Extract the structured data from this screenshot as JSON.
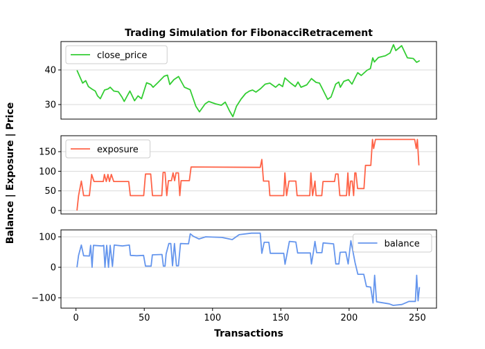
{
  "chart_data": [
    {
      "type": "line",
      "title": "Trading Simulation for FibonacciRetracement",
      "xlabel": "",
      "ylabel": "",
      "xlim": [
        -11,
        264
      ],
      "ylim": [
        25.8,
        48.2
      ],
      "yticks": [
        30,
        40
      ],
      "xticks": [],
      "grid": "horizontal",
      "legend": "upper-left",
      "series": [
        {
          "name": "close_price",
          "color": "#32cd32",
          "x": [
            0.7,
            4.9,
            7.1,
            9.1,
            11.6,
            14.1,
            15.8,
            17.8,
            20.9,
            23.4,
            25.1,
            27.7,
            31,
            33.6,
            35.3,
            37.5,
            39.5,
            42.9,
            45.4,
            48,
            51.7,
            54.8,
            56.5,
            59.9,
            64.6,
            67,
            68.7,
            71.7,
            75.1,
            79.4,
            83.6,
            87.8,
            90.4,
            94.6,
            97.2,
            102.2,
            106.4,
            109.3,
            112.4,
            114.9,
            117.5,
            120.9,
            124.2,
            127,
            129.3,
            131.8,
            135.2,
            138.6,
            142,
            146.2,
            148.7,
            151.3,
            153,
            157.2,
            160.6,
            162.6,
            164.8,
            169,
            172.4,
            175.8,
            178.3,
            180.9,
            184.3,
            186.8,
            190.2,
            192.4,
            193.6,
            196.1,
            199.5,
            202.1,
            204.6,
            206.3,
            208.9,
            213.1,
            215.6,
            217.3,
            218.5,
            221.5,
            226.6,
            230,
            232.5,
            234.2,
            238.5,
            242.7,
            247,
            249.5,
            251.7
          ],
          "y": [
            39.9,
            36.2,
            36.9,
            35.2,
            34.5,
            33.9,
            32.5,
            31.7,
            34.2,
            34.5,
            35,
            33.9,
            33.7,
            32.2,
            30.9,
            32.5,
            33.9,
            31.1,
            32.5,
            31.7,
            36.3,
            35.8,
            35,
            36.3,
            38.2,
            38.5,
            35.8,
            37.2,
            38.1,
            35,
            34.3,
            29.5,
            27.9,
            30.2,
            30.9,
            30.2,
            29.8,
            30.7,
            28.2,
            26.5,
            29.5,
            31.6,
            33.2,
            33.9,
            34.2,
            33.6,
            34.6,
            35.9,
            36.2,
            35,
            35.9,
            35.2,
            37.7,
            36.2,
            35.2,
            36.5,
            35,
            35.7,
            37.5,
            36.4,
            36.2,
            34.2,
            31.5,
            32.2,
            35.9,
            36.5,
            35,
            36.7,
            37.2,
            35.9,
            37.9,
            39.2,
            38.4,
            39.9,
            40.4,
            43.5,
            42.3,
            43.6,
            44.1,
            44.9,
            47.3,
            45.6,
            47,
            43.5,
            43.3,
            42.2,
            42.7
          ]
        }
      ]
    },
    {
      "type": "line",
      "xlim": [
        -11,
        264
      ],
      "ylim": [
        -8.8,
        190.6
      ],
      "yticks": [
        0,
        50,
        100,
        150
      ],
      "xticks": [],
      "grid": "horizontal",
      "legend": "upper-left",
      "series": [
        {
          "name": "exposure",
          "color": "#ff6347",
          "x": [
            0.7,
            1.9,
            3.9,
            5.6,
            9.8,
            11.5,
            13.2,
            20,
            20.8,
            22.2,
            23.4,
            24.5,
            25.9,
            27.6,
            38.6,
            39.8,
            49.6,
            50.9,
            54.7,
            56,
            62.8,
            63.8,
            65.2,
            66.5,
            67.7,
            69.9,
            71.1,
            72.2,
            73.3,
            75,
            76,
            77,
            83,
            84.3,
            134.9,
            136.1,
            137.3,
            141.2,
            142,
            152.1,
            153,
            154.2,
            156,
            161,
            161.9,
            171.2,
            172,
            173.3,
            175,
            175.8,
            180,
            180.9,
            189.3,
            190.2,
            191.9,
            193.2,
            198.1,
            199.1,
            200,
            201.1,
            202.3,
            203.3,
            204.2,
            205,
            206.2,
            210.9,
            212,
            215.9,
            217.1,
            218,
            219.3,
            248,
            249.2,
            250,
            251.1
          ],
          "y": [
            0,
            38,
            75,
            38,
            38,
            92,
            74,
            74,
            92,
            74,
            92,
            74,
            92,
            74,
            74,
            38,
            38,
            93,
            93,
            38,
            38,
            97,
            97,
            38,
            76,
            76,
            96,
            76,
            96,
            96,
            38,
            76,
            76,
            111,
            110,
            130,
            75,
            75,
            38,
            38,
            96,
            38,
            75,
            75,
            38,
            38,
            96,
            38,
            75,
            38,
            38,
            74,
            74,
            93,
            93,
            38,
            38,
            96,
            38,
            75,
            75,
            38,
            96,
            96,
            56,
            56,
            115,
            115,
            181,
            158,
            181,
            181,
            158,
            181,
            115
          ]
        }
      ]
    },
    {
      "type": "line",
      "xlabel": "Transactions",
      "xlim": [
        -11,
        264
      ],
      "ylim": [
        -134,
        122.7
      ],
      "yticks": [
        -100,
        0,
        100
      ],
      "xticks": [
        0,
        50,
        100,
        150,
        200,
        250
      ],
      "grid": "horizontal",
      "legend": "upper-right",
      "series": [
        {
          "name": "balance",
          "color": "#6495ed",
          "x": [
            0.7,
            1.9,
            3.9,
            5.6,
            9.8,
            10.7,
            11.8,
            12.8,
            19,
            20.3,
            21.2,
            22.5,
            23.8,
            25,
            26.7,
            28,
            34,
            39.1,
            39.9,
            44.5,
            49.5,
            50.9,
            55,
            55.9,
            63,
            64,
            65.2,
            66,
            68,
            69.4,
            70.7,
            72.1,
            73.6,
            75,
            76.5,
            82.4,
            83.7,
            85.8,
            90,
            95,
            106.8,
            114.4,
            119.5,
            128.5,
            134.9,
            136.1,
            137.8,
            141.2,
            142.3,
            152.1,
            153.1,
            156.3,
            161,
            162.3,
            171.6,
            172.4,
            173.8,
            175,
            176.2,
            180.1,
            181,
            188.6,
            190.3,
            192.5,
            193.4,
            197.6,
            199.3,
            201.3,
            204.4,
            206.4,
            210.7,
            212.7,
            215.8,
            217.5,
            218.7,
            220.1,
            229.4,
            232.3,
            238.7,
            243.8,
            248.5,
            249.5,
            250.5,
            251.5
          ],
          "y": [
            0,
            39,
            73,
            38,
            37,
            72,
            0,
            72,
            70,
            72,
            0,
            72,
            0,
            72,
            3,
            73,
            70,
            73,
            39,
            38,
            39,
            4,
            4,
            41,
            42,
            4,
            4,
            44,
            78,
            78,
            5,
            78,
            5,
            5,
            78,
            77,
            110,
            102,
            93,
            100,
            98,
            91,
            107,
            112,
            112,
            46,
            82,
            82,
            46,
            46,
            10,
            85,
            83,
            47,
            47,
            11,
            48,
            85,
            48,
            48,
            80,
            77,
            11,
            11,
            49,
            50,
            11,
            87,
            15,
            -23,
            -23,
            -63,
            -65,
            -117,
            -26,
            -113,
            -120,
            -125,
            -122,
            -112,
            -112,
            -26,
            -110,
            -65
          ]
        }
      ]
    }
  ],
  "figure": {
    "title": "Trading Simulation for FibonacciRetracement",
    "shared_ylabel": "Balance | Exposure | Price",
    "xlabel": "Transactions"
  }
}
